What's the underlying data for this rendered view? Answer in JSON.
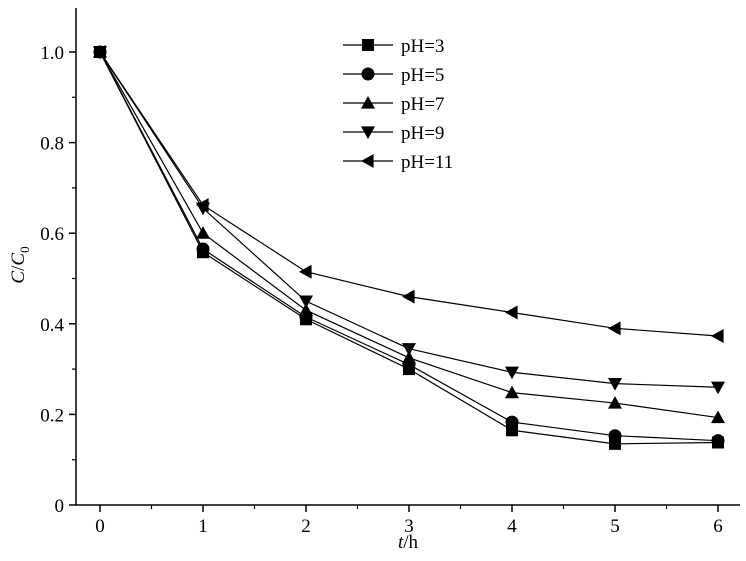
{
  "chart_data": {
    "type": "line",
    "title": "",
    "xlabel": "t/h",
    "ylabel": "C/C0",
    "xlim": [
      0,
      6
    ],
    "ylim": [
      0,
      1.0
    ],
    "x_ticks": [
      "0",
      "1",
      "2",
      "3",
      "4",
      "5",
      "6"
    ],
    "y_ticks": [
      "0",
      "0.2",
      "0.4",
      "0.6",
      "0.8",
      "1.0"
    ],
    "grid": false,
    "legend_position": "top-center",
    "x": [
      0,
      1,
      2,
      3,
      4,
      5,
      6
    ],
    "series": [
      {
        "name": "pH=3",
        "marker": "square",
        "values": [
          1.0,
          0.558,
          0.41,
          0.3,
          0.165,
          0.135,
          0.138
        ]
      },
      {
        "name": "pH=5",
        "marker": "circle",
        "values": [
          1.0,
          0.565,
          0.415,
          0.31,
          0.183,
          0.153,
          0.142
        ]
      },
      {
        "name": "pH=7",
        "marker": "triangle-up",
        "values": [
          1.0,
          0.6,
          0.43,
          0.325,
          0.248,
          0.225,
          0.193
        ]
      },
      {
        "name": "pH=9",
        "marker": "triangle-down",
        "values": [
          1.0,
          0.655,
          0.45,
          0.345,
          0.293,
          0.268,
          0.26
        ]
      },
      {
        "name": "pH=11",
        "marker": "triangle-left",
        "values": [
          1.0,
          0.662,
          0.515,
          0.46,
          0.425,
          0.39,
          0.373
        ]
      }
    ],
    "colors": {
      "line": "#000000",
      "marker": "#000000"
    }
  }
}
